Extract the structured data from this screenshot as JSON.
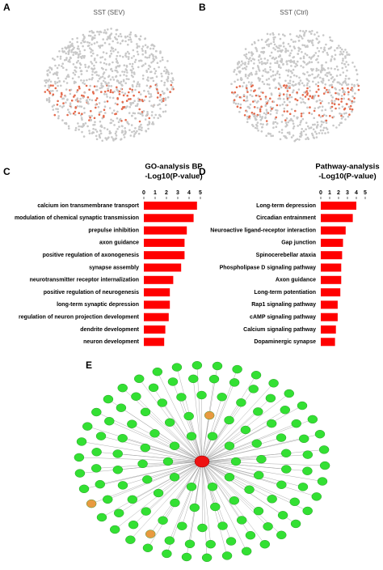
{
  "figure": {
    "panels": [
      {
        "label": "A",
        "title": "SST (SEV)"
      },
      {
        "label": "B",
        "title": "SST (Ctrl)"
      },
      {
        "label": "C"
      },
      {
        "label": "D"
      },
      {
        "label": "E"
      }
    ]
  },
  "chart_data": [
    {
      "type": "hbar",
      "title": "GO-analysis BP",
      "xlabel": "-Log10(P-value)",
      "color": "#ff0000",
      "xlim": [
        0,
        5
      ],
      "xticks": [
        0,
        1,
        2,
        3,
        4,
        5
      ],
      "categories": [
        "calcium ion transmembrane transport",
        "modulation of chemical synaptic transmission",
        "prepulse inhibition",
        "axon guidance",
        "positive regulation of axonogenesis",
        "synapse assembly",
        "neurotransmitter receptor internalization",
        "positive regulation of neurogenesis",
        "long-term synaptic depression",
        "regulation of neuron projection development",
        "dendrite development",
        "neuron development"
      ],
      "values": [
        4.7,
        4.4,
        3.8,
        3.6,
        3.6,
        3.3,
        2.6,
        2.3,
        2.3,
        2.2,
        1.9,
        1.8
      ]
    },
    {
      "type": "hbar",
      "title": "Pathway-analysis",
      "xlabel": "-Log10(P-value)",
      "color": "#ff0000",
      "xlim": [
        0,
        5
      ],
      "xticks": [
        0,
        1,
        2,
        3,
        4,
        5
      ],
      "categories": [
        "Long-term depression",
        "Circadian entrainment",
        "Neuroactive ligand-receptor interaction",
        "Gap junction",
        "Spinocerebellar ataxia",
        "Phospholipase D signaling pathway",
        "Axon guidance",
        "Long-term potentiation",
        "Rap1 signaling pathway",
        "cAMP signaling pathway",
        "Calcium signaling pathway",
        "Dopaminergic synapse"
      ],
      "values": [
        4.0,
        3.6,
        2.8,
        2.5,
        2.4,
        2.3,
        2.3,
        2.2,
        1.9,
        1.9,
        1.7,
        1.6
      ]
    }
  ]
}
